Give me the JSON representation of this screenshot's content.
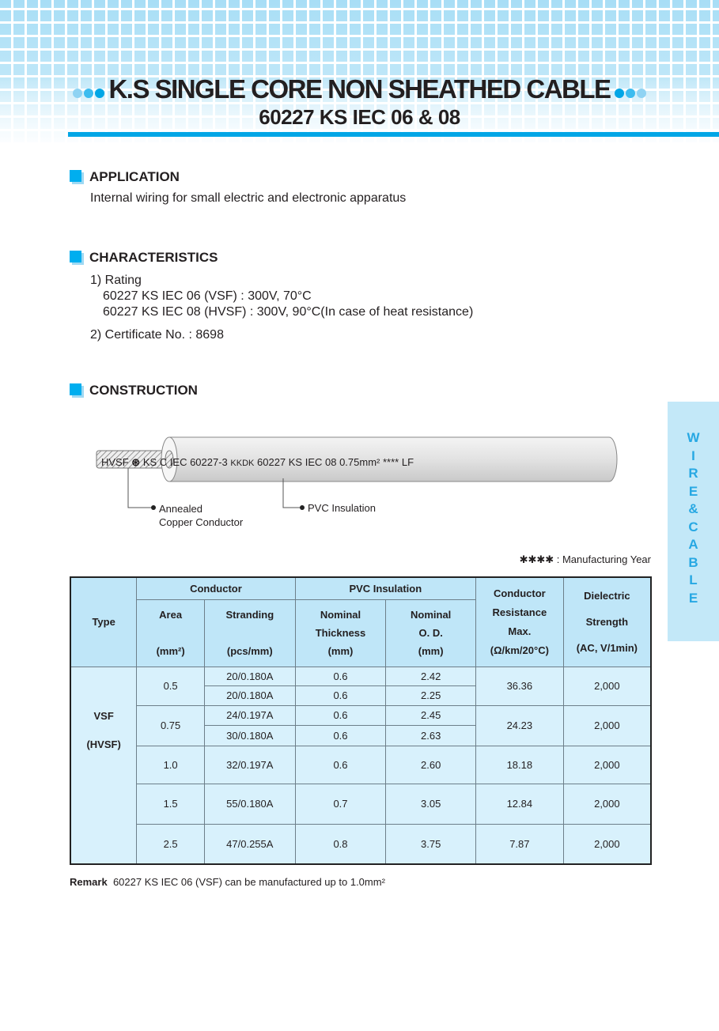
{
  "header": {
    "title": "K.S SINGLE CORE NON SHEATHED CABLE",
    "subtitle": "60227 KS IEC 06 & 08"
  },
  "application": {
    "heading": "APPLICATION",
    "text": "Internal wiring for small electric and electronic apparatus"
  },
  "characteristics": {
    "heading": "CHARACTERISTICS",
    "rating_label": "1) Rating",
    "rating_lines": [
      "60227 KS IEC 06 (VSF) : 300V, 70°C",
      "60227 KS IEC 08 (HVSF) : 300V, 90°C(In case of heat resistance)"
    ],
    "certificate": "2) Certificate No. : 8698"
  },
  "construction": {
    "heading": "CONSTRUCTION",
    "cable_print": {
      "a": "HVSF",
      "b": "KS C IEC 60227-3",
      "c": "KKDK",
      "d": "60227 KS IEC 08 0.75mm²",
      "e": "**** LF"
    },
    "conductor_label": [
      "Annealed",
      "Copper Conductor"
    ],
    "insulation_label": "PVC Insulation",
    "note": "✱✱✱✱ :  Manufacturing Year"
  },
  "side_tab": [
    "W",
    "I",
    "R",
    "E",
    "&",
    "C",
    "A",
    "B",
    "L",
    "E"
  ],
  "colors": {
    "accent": "#00a6e6",
    "table_header": "#bfe6f8",
    "table_body": "#d8f1fc",
    "side_tab_text": "#27a8e3"
  },
  "table": {
    "headers": {
      "type": "Type",
      "conductor": "Conductor",
      "pvc": "PVC Insulation",
      "area": [
        "Area",
        "(mm²)"
      ],
      "stranding": [
        "Stranding",
        "(pcs/mm)"
      ],
      "thickness": [
        "Nominal",
        "Thickness",
        "(mm)"
      ],
      "od": [
        "Nominal",
        "O. D.",
        "(mm)"
      ],
      "resistance": [
        "Conductor",
        "Resistance",
        "Max.",
        "(Ω/km/20°C)"
      ],
      "dielectric": [
        "Dielectric",
        "Strength",
        "(AC, V/1min)"
      ]
    },
    "type_value": [
      "VSF",
      "(HVSF)"
    ],
    "groups": [
      {
        "area": "0.5",
        "resistance": "36.36",
        "dielectric": "2,000",
        "rows": [
          [
            "20/0.180A",
            "0.6",
            "2.42"
          ],
          [
            "20/0.180A",
            "0.6",
            "2.25"
          ]
        ]
      },
      {
        "area": "0.75",
        "resistance": "24.23",
        "dielectric": "2,000",
        "rows": [
          [
            "24/0.197A",
            "0.6",
            "2.45"
          ],
          [
            "30/0.180A",
            "0.6",
            "2.63"
          ]
        ]
      },
      {
        "area": "1.0",
        "resistance": "18.18",
        "dielectric": "2,000",
        "rows": [
          [
            "32/0.197A",
            "0.6",
            "2.60"
          ]
        ]
      },
      {
        "area": "1.5",
        "resistance": "12.84",
        "dielectric": "2,000",
        "rows": [
          [
            "55/0.180A",
            "0.7",
            "3.05"
          ]
        ]
      },
      {
        "area": "2.5",
        "resistance": "7.87",
        "dielectric": "2,000",
        "rows": [
          [
            "47/0.255A",
            "0.8",
            "3.75"
          ]
        ]
      }
    ]
  },
  "remark": {
    "label": "Remark",
    "text": "60227 KS IEC 06 (VSF) can be manufactured up to 1.0mm²"
  }
}
